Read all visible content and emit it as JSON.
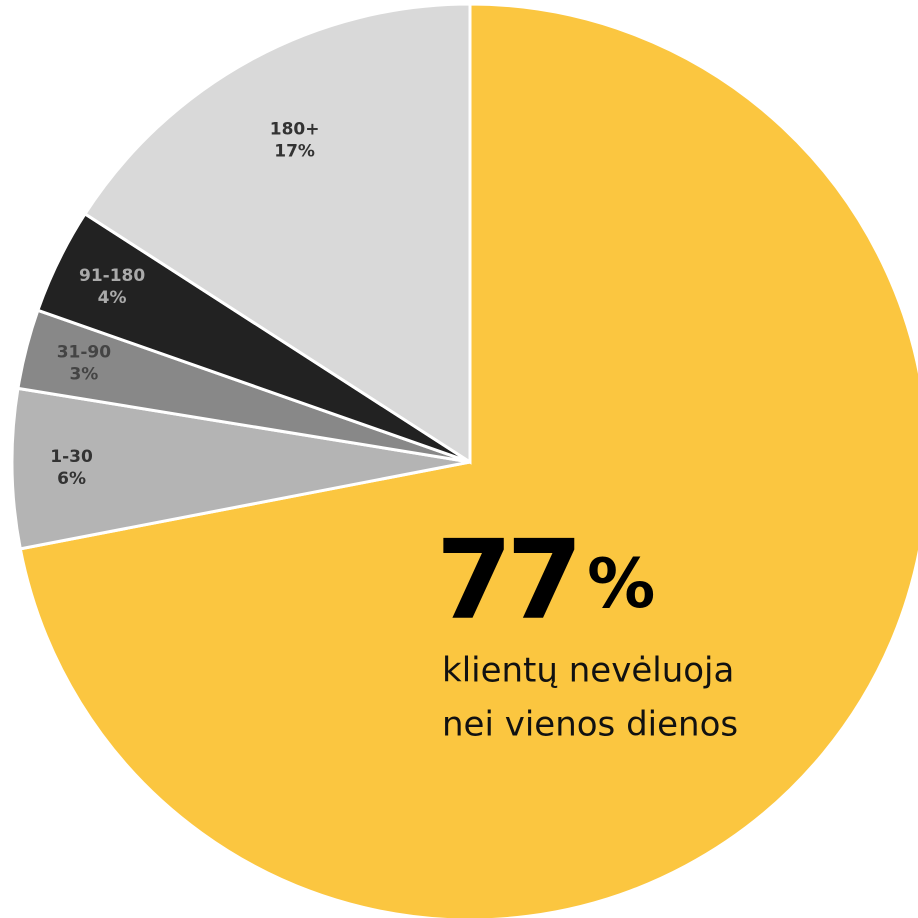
{
  "chart_data": {
    "type": "pie",
    "categories": [
      null,
      "1-30",
      "31-90",
      "91-180",
      "180+"
    ],
    "values": [
      77,
      6,
      3,
      4,
      17
    ],
    "value_labels": [
      "77%",
      "6%",
      "3%",
      "4%",
      "17%"
    ],
    "colors": [
      "#fbc640",
      "#b4b4b4",
      "#888888",
      "#222222",
      "#d9d9d9"
    ],
    "annotation": [
      "klientų nevėluoja",
      "nei vienos dienos"
    ]
  }
}
